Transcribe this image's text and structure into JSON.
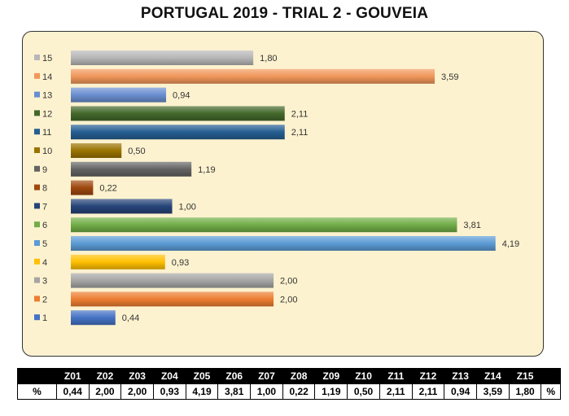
{
  "title": "PORTUGAL 2019 - TRIAL 2 - GOUVEIA",
  "chart_data": {
    "type": "bar",
    "orientation": "horizontal",
    "title": "PORTUGAL 2019 - TRIAL 2 - GOUVEIA",
    "categories": [
      "1",
      "2",
      "3",
      "4",
      "5",
      "6",
      "7",
      "8",
      "9",
      "10",
      "11",
      "12",
      "13",
      "14",
      "15"
    ],
    "values": [
      0.44,
      2.0,
      2.0,
      0.93,
      4.19,
      3.81,
      1.0,
      0.22,
      1.19,
      0.5,
      2.11,
      2.11,
      0.94,
      3.59,
      1.8
    ],
    "value_labels": [
      "0,44",
      "2,00",
      "2,00",
      "0,93",
      "4,19",
      "3,81",
      "1,00",
      "0,22",
      "1,19",
      "0,50",
      "2,11",
      "2,11",
      "0,94",
      "3,59",
      "1,80"
    ],
    "colors": [
      "#4472c4",
      "#ed7d31",
      "#a5a5a5",
      "#ffc000",
      "#5b9bd5",
      "#70ad47",
      "#264478",
      "#9e480e",
      "#636363",
      "#997300",
      "#255e91",
      "#43682b",
      "#698ed0",
      "#f1975a",
      "#b7b7b7"
    ],
    "xlim": [
      0,
      4.2
    ],
    "grid": false,
    "legend": "left"
  },
  "table": {
    "header": [
      "",
      "Z01",
      "Z02",
      "Z03",
      "Z04",
      "Z05",
      "Z06",
      "Z07",
      "Z08",
      "Z09",
      "Z10",
      "Z11",
      "Z12",
      "Z13",
      "Z14",
      "Z15",
      ""
    ],
    "row": [
      "%",
      "0,44",
      "2,00",
      "2,00",
      "0,93",
      "4,19",
      "3,81",
      "1,00",
      "0,22",
      "1,19",
      "0,50",
      "2,11",
      "2,11",
      "0,94",
      "3,59",
      "1,80",
      "%"
    ]
  }
}
